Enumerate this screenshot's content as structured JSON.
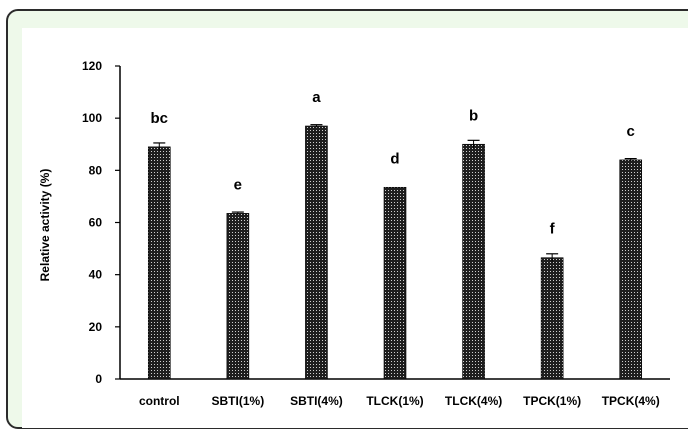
{
  "chart_data": {
    "type": "bar",
    "title": "",
    "xlabel": "",
    "ylabel": "Relative activity (%)",
    "ylim": [
      0,
      120
    ],
    "yticks": [
      "0",
      "20",
      "40",
      "60",
      "80",
      "100",
      "120"
    ],
    "grid": false,
    "legend": "none",
    "categories": [
      "control",
      "SBTI(1%)",
      "SBTI(4%)",
      "TLCK(1%)",
      "TLCK(4%)",
      "TPCK(1%)",
      "TPCK(4%)"
    ],
    "values": [
      89,
      63.5,
      97,
      73.5,
      90,
      46.5,
      84
    ],
    "errors": [
      1.5,
      0.5,
      0.5,
      0,
      1.5,
      1.5,
      0.5
    ],
    "significance_letters": [
      "bc",
      "e",
      "a",
      "d",
      "b",
      "f",
      "c"
    ],
    "colors": {
      "bar_fill": "#1e1e1e",
      "bar_dot": "#cfcfcf",
      "frame_bg": "#eef9ea",
      "frame_border": "#2b2b2b"
    }
  }
}
